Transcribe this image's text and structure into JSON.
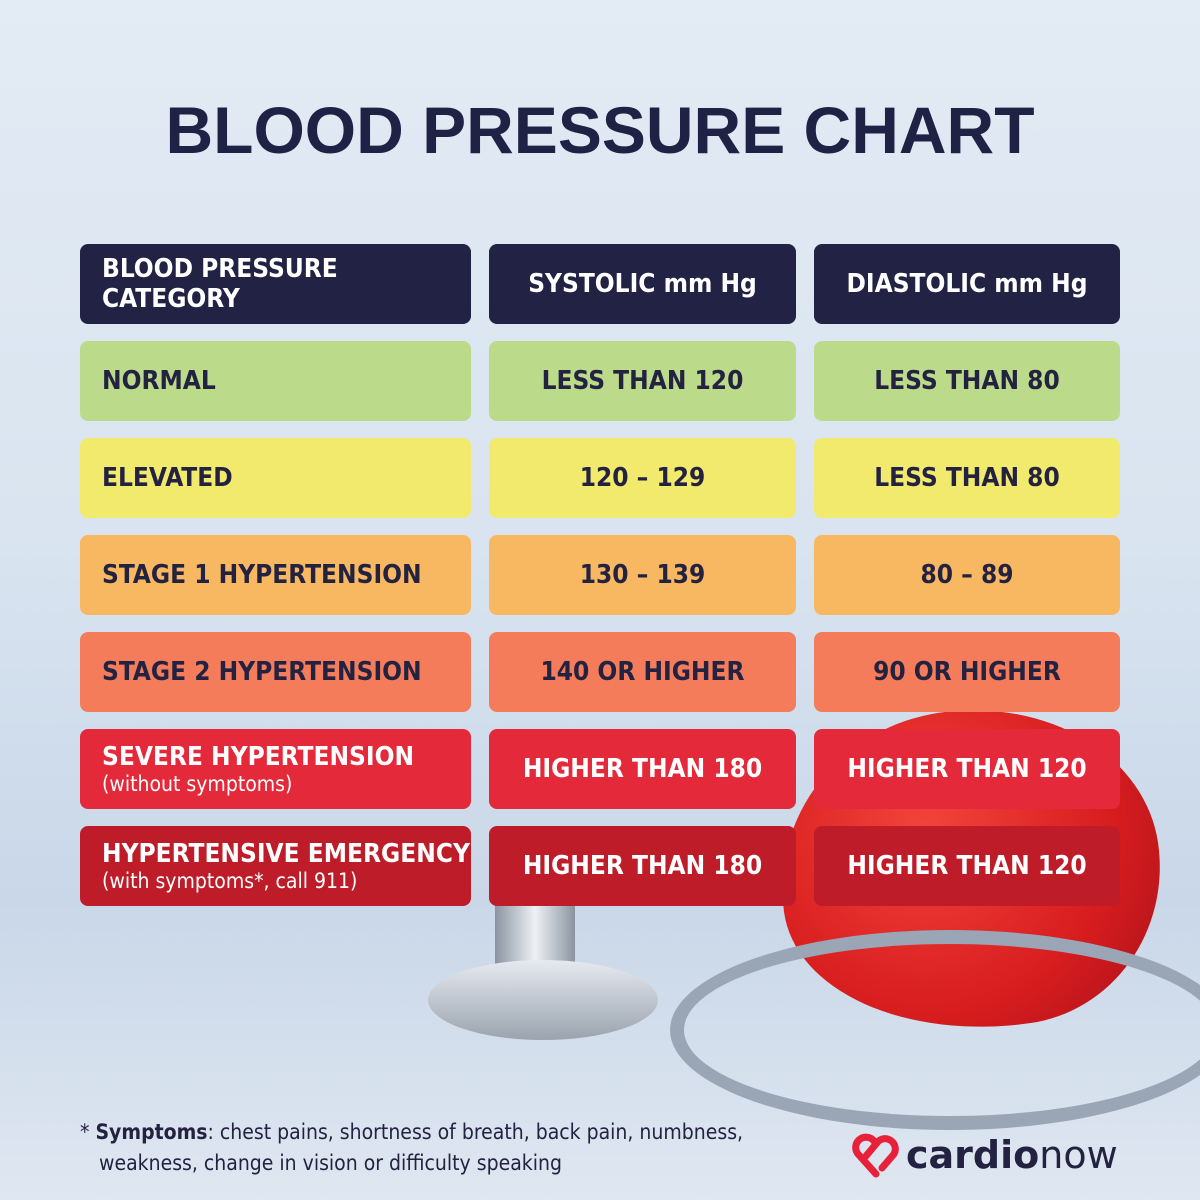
{
  "title": "BLOOD PRESSURE CHART",
  "headers": [
    "BLOOD PRESSURE CATEGORY",
    "SYSTOLIC mm Hg",
    "DIASTOLIC mm Hg"
  ],
  "rows": [
    {
      "category": "NORMAL",
      "note": "",
      "systolic": "LESS THAN 120",
      "diastolic": "LESS THAN 80",
      "color": "#bbdb8a"
    },
    {
      "category": "ELEVATED",
      "note": "",
      "systolic": "120 – 129",
      "diastolic": "LESS THAN 80",
      "color": "#f2ea6d"
    },
    {
      "category": "STAGE 1 HYPERTENSION",
      "note": "",
      "systolic": "130 – 139",
      "diastolic": "80 – 89",
      "color": "#f8b862"
    },
    {
      "category": "STAGE 2 HYPERTENSION",
      "note": "",
      "systolic": "140 OR HIGHER",
      "diastolic": "90 OR HIGHER",
      "color": "#f47c5a"
    },
    {
      "category": "SEVERE HYPERTENSION",
      "note": "(without symptoms)",
      "systolic": "HIGHER THAN 180",
      "diastolic": "HIGHER THAN 120",
      "color": "#e42a3a"
    },
    {
      "category": "HYPERTENSIVE EMERGENCY",
      "note": "(with symptoms*, call 911)",
      "systolic": "HIGHER THAN 180",
      "diastolic": "HIGHER THAN 120",
      "color": "#bf1c2a"
    }
  ],
  "footnote": {
    "star": "* ",
    "bold": "Symptoms",
    "text": ": chest pains, shortness of breath, back pain, numbness,",
    "line2": "weakness, change in vision or difficulty speaking"
  },
  "logo": {
    "part1": "cardio",
    "part2": "now",
    "icon": "heart-logo-icon",
    "color": "#e8203a"
  }
}
